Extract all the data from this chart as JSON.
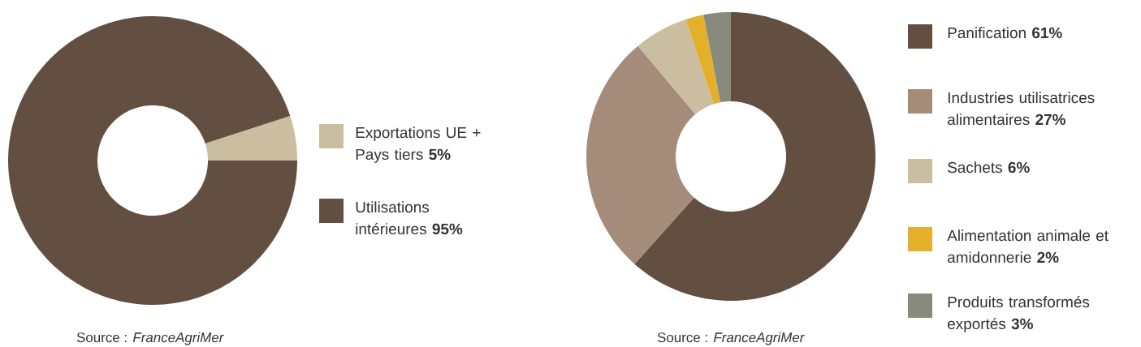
{
  "chart_data": [
    {
      "type": "donut",
      "categories": [
        "Exportations UE + Pays tiers",
        "Utilisations intérieures"
      ],
      "values": [
        5,
        95
      ],
      "colors": [
        "#cbbda0",
        "#634f42"
      ],
      "value_labels": [
        "5%",
        "95%"
      ],
      "legend": "right",
      "annotations": [
        "Source : *FranceAgriMer*"
      ]
    },
    {
      "type": "donut",
      "categories": [
        "Panification",
        "Industries utilisatrices alimentaires",
        "Sachets",
        "Alimentation animale et amidonnerie",
        "Produits transformés exportés"
      ],
      "values": [
        61,
        27,
        6,
        2,
        3
      ],
      "colors": [
        "#634f42",
        "#a48b7a",
        "#cbbda0",
        "#e2b02a",
        "#878a7c"
      ],
      "value_labels": [
        "61%",
        "27%",
        "6%",
        "2%",
        "3%"
      ],
      "legend": "right",
      "annotations": [
        "Source : *FranceAgriMer*"
      ]
    }
  ]
}
